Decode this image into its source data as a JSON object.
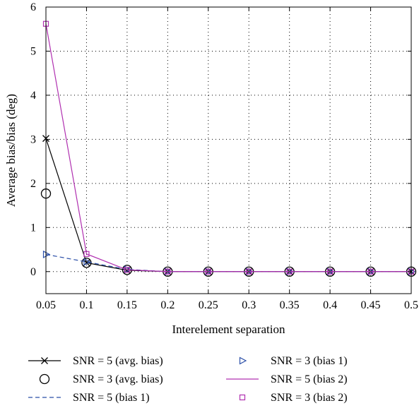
{
  "chart_data": {
    "type": "line",
    "title": "",
    "xlabel": "Interelement separation",
    "ylabel": "Average bias/bias (deg)",
    "xlim": [
      0.05,
      0.5
    ],
    "ylim": [
      -0.5,
      6
    ],
    "xticks": [
      0.05,
      0.1,
      0.15,
      0.2,
      0.25,
      0.3,
      0.35,
      0.4,
      0.45,
      0.5
    ],
    "yticks": [
      0,
      1,
      2,
      3,
      4,
      5,
      6
    ],
    "xtick_labels": [
      "0.05",
      "0.1",
      "0.15",
      "0.2",
      "0.25",
      "0.3",
      "0.35",
      "0.4",
      "0.45",
      "0.5"
    ],
    "ytick_labels": [
      "0",
      "1",
      "2",
      "3",
      "4",
      "5",
      "6"
    ],
    "grid": true,
    "legend_position": "below",
    "x": [
      0.05,
      0.1,
      0.15,
      0.2,
      0.25,
      0.3,
      0.35,
      0.4,
      0.45,
      0.5
    ],
    "series": [
      {
        "name": "SNR = 5 (avg. bias)",
        "values": [
          3.02,
          0.2,
          0.03,
          0,
          0,
          0,
          0,
          0,
          0,
          0
        ],
        "color": "#000000",
        "line": "solid",
        "marker": "x"
      },
      {
        "name": "SNR = 3 (avg. bias)",
        "values": [
          1.77,
          0.2,
          0.04,
          0,
          0,
          0,
          0,
          0,
          0,
          0
        ],
        "color": "#000000",
        "line": "none",
        "marker": "circle"
      },
      {
        "name": "SNR = 5 (bias 1)",
        "values": [
          0.39,
          0.22,
          0.05,
          0,
          0,
          0,
          0,
          0,
          0,
          0
        ],
        "color": "#2b4fa8",
        "line": "dashed",
        "marker": "none"
      },
      {
        "name": "SNR = 3 (bias 1)",
        "values": [
          0.39,
          0.22,
          0.05,
          0,
          0,
          0,
          0,
          0,
          0,
          0
        ],
        "color": "#2b4fa8",
        "line": "none",
        "marker": "triangle-right"
      },
      {
        "name": "SNR = 5 (bias 2)",
        "values": [
          5.62,
          0.4,
          0.04,
          0,
          0,
          0,
          0,
          0,
          0,
          0
        ],
        "color": "#b030b0",
        "line": "solid",
        "marker": "none"
      },
      {
        "name": "SNR = 3 (bias 2)",
        "values": [
          5.62,
          0.4,
          0.04,
          0,
          0,
          0,
          0,
          0,
          0,
          0
        ],
        "color": "#b030b0",
        "line": "none",
        "marker": "square"
      }
    ]
  }
}
